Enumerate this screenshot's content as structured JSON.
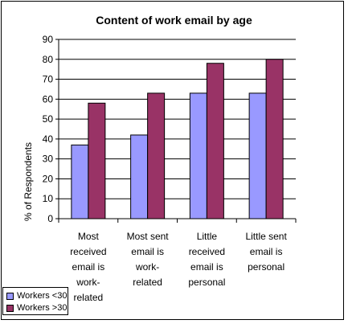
{
  "chart_data": {
    "type": "bar",
    "title": "Content of work email by age",
    "ylabel": "% of Respondents",
    "xlabel": "",
    "ylim": [
      0,
      90
    ],
    "yticks": [
      0,
      10,
      20,
      30,
      40,
      50,
      60,
      70,
      80,
      90
    ],
    "grid": true,
    "legend_position": "bottom-left",
    "categories": [
      "Most received email is work-related",
      "Most sent email is work-related",
      "Little received email is personal",
      "Little sent email is personal"
    ],
    "category_label_lines": [
      [
        "Most",
        "received",
        "email is",
        "work-",
        "related"
      ],
      [
        "Most sent",
        "email is",
        "work-",
        "related"
      ],
      [
        "Little",
        "received",
        "email is",
        "personal"
      ],
      [
        "Little sent",
        "email is",
        "personal"
      ]
    ],
    "series": [
      {
        "name": "Workers <30",
        "color": "#9999ff",
        "values": [
          37,
          42,
          63,
          63
        ]
      },
      {
        "name": "Workers >30",
        "color": "#993366",
        "values": [
          58,
          63,
          78,
          80
        ]
      }
    ]
  }
}
